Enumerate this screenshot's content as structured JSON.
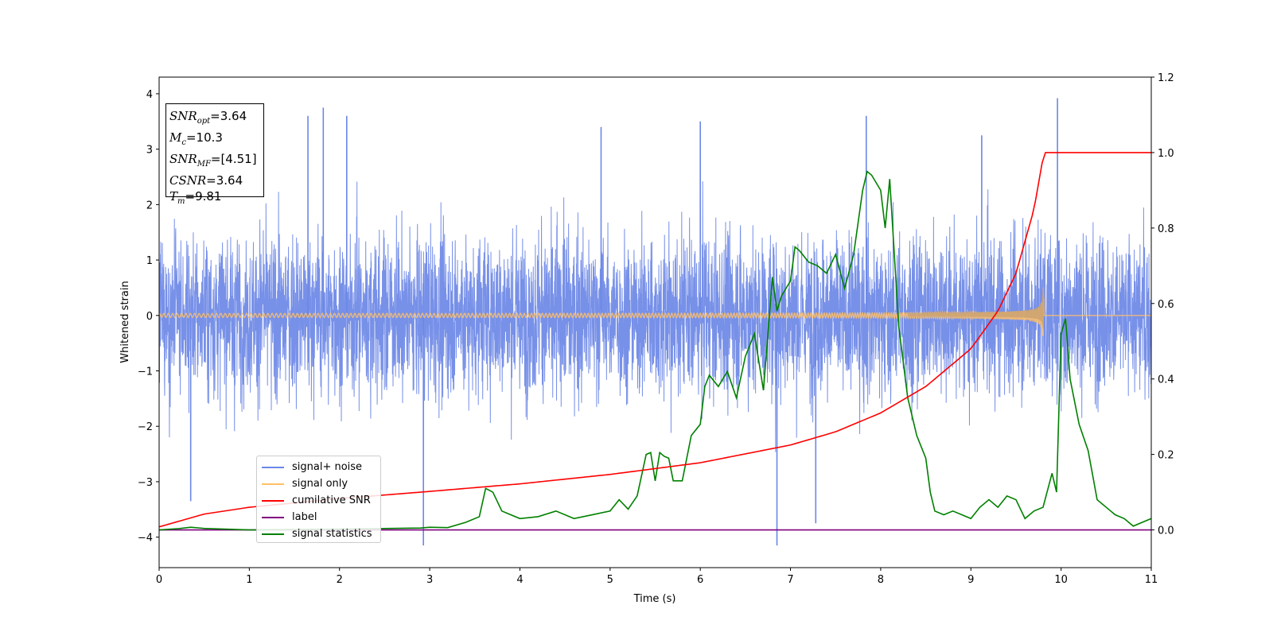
{
  "chart_data": {
    "type": "line",
    "xlabel": "Time (s)",
    "ylabel": "Whitened strain",
    "xlim": [
      0,
      11
    ],
    "ylim": [
      -4.55,
      4.3
    ],
    "y2lim": [
      -0.1,
      1.2
    ],
    "xticks": [
      "0",
      "1",
      "2",
      "3",
      "4",
      "5",
      "6",
      "7",
      "8",
      "9",
      "10",
      "11"
    ],
    "yticks": [
      "4",
      "3",
      "2",
      "1",
      "0",
      "−1",
      "−2",
      "−3",
      "−4"
    ],
    "y2ticks": [
      "1.2",
      "1.0",
      "0.8",
      "0.6",
      "0.4",
      "0.2",
      "0.0"
    ],
    "grid": false,
    "legend_position": "lower-left",
    "info_box": {
      "snr_opt": "=3.64",
      "mc": "=10.3",
      "snr_mf": "=[4.51]",
      "csnr": "=3.64",
      "tm": "=9.81"
    },
    "series": [
      {
        "name": "signal+ noise",
        "color": "#6b87e6",
        "axis": "left",
        "noise_amplitude": 1.0,
        "extreme_peaks": [
          {
            "x": 1.65,
            "y": 3.6
          },
          {
            "x": 1.82,
            "y": 3.75
          },
          {
            "x": 2.08,
            "y": 3.6
          },
          {
            "x": 2.93,
            "y": -4.15
          },
          {
            "x": 6.85,
            "y": -4.15
          },
          {
            "x": 7.84,
            "y": 3.6
          },
          {
            "x": 9.96,
            "y": 3.92
          },
          {
            "x": 6.0,
            "y": 3.5
          },
          {
            "x": 4.9,
            "y": 3.4
          },
          {
            "x": 0.35,
            "y": -3.35
          },
          {
            "x": 7.28,
            "y": -3.75
          },
          {
            "x": 9.12,
            "y": 3.25
          }
        ]
      },
      {
        "name": "signal only",
        "color": "#ffbf66",
        "axis": "left",
        "merger_time": 9.81,
        "peak_amplitude": 0.65
      },
      {
        "name": "cumilative SNR",
        "color": "#ff0000",
        "axis": "right",
        "x": [
          0,
          0.5,
          1,
          2,
          3,
          4,
          5,
          6,
          7,
          7.5,
          8,
          8.5,
          9,
          9.3,
          9.5,
          9.7,
          9.81,
          11
        ],
        "values": [
          0.008,
          0.042,
          0.06,
          0.083,
          0.102,
          0.122,
          0.147,
          0.178,
          0.225,
          0.26,
          0.31,
          0.38,
          0.48,
          0.58,
          0.68,
          0.85,
          1.0,
          1.0
        ]
      },
      {
        "name": "label",
        "color": "#800080",
        "axis": "right",
        "x": [
          0,
          11
        ],
        "values": [
          0.0,
          0.0
        ]
      },
      {
        "name": "signal statistics",
        "color": "#008000",
        "axis": "right",
        "x": [
          0,
          0.2,
          0.35,
          0.5,
          1.0,
          2.0,
          2.9,
          3.0,
          3.2,
          3.4,
          3.55,
          3.62,
          3.7,
          3.8,
          4.0,
          4.2,
          4.4,
          4.6,
          4.8,
          5.0,
          5.1,
          5.2,
          5.3,
          5.4,
          5.45,
          5.5,
          5.55,
          5.6,
          5.65,
          5.7,
          5.8,
          5.9,
          6.0,
          6.05,
          6.1,
          6.2,
          6.3,
          6.4,
          6.5,
          6.6,
          6.7,
          6.8,
          6.85,
          6.9,
          7.0,
          7.05,
          7.1,
          7.2,
          7.3,
          7.4,
          7.5,
          7.6,
          7.7,
          7.8,
          7.85,
          7.9,
          8.0,
          8.05,
          8.1,
          8.2,
          8.3,
          8.4,
          8.5,
          8.55,
          8.6,
          8.7,
          8.8,
          8.9,
          9.0,
          9.1,
          9.2,
          9.3,
          9.4,
          9.5,
          9.6,
          9.7,
          9.8,
          9.9,
          9.95,
          10.0,
          10.05,
          10.1,
          10.2,
          10.3,
          10.4,
          10.5,
          10.6,
          10.7,
          10.8,
          11.0
        ],
        "values": [
          0.0,
          0.003,
          0.007,
          0.004,
          0.0,
          0.002,
          0.005,
          0.007,
          0.006,
          0.02,
          0.035,
          0.11,
          0.1,
          0.05,
          0.03,
          0.035,
          0.05,
          0.03,
          0.04,
          0.05,
          0.08,
          0.055,
          0.09,
          0.2,
          0.205,
          0.13,
          0.205,
          0.195,
          0.19,
          0.13,
          0.13,
          0.25,
          0.28,
          0.38,
          0.41,
          0.38,
          0.42,
          0.35,
          0.46,
          0.52,
          0.37,
          0.67,
          0.58,
          0.62,
          0.66,
          0.75,
          0.74,
          0.71,
          0.7,
          0.68,
          0.73,
          0.64,
          0.73,
          0.9,
          0.95,
          0.94,
          0.9,
          0.8,
          0.93,
          0.54,
          0.35,
          0.25,
          0.19,
          0.1,
          0.05,
          0.04,
          0.05,
          0.04,
          0.03,
          0.06,
          0.08,
          0.06,
          0.09,
          0.08,
          0.03,
          0.05,
          0.06,
          0.15,
          0.1,
          0.52,
          0.56,
          0.4,
          0.28,
          0.21,
          0.08,
          0.06,
          0.04,
          0.03,
          0.01,
          0.03
        ]
      }
    ]
  }
}
